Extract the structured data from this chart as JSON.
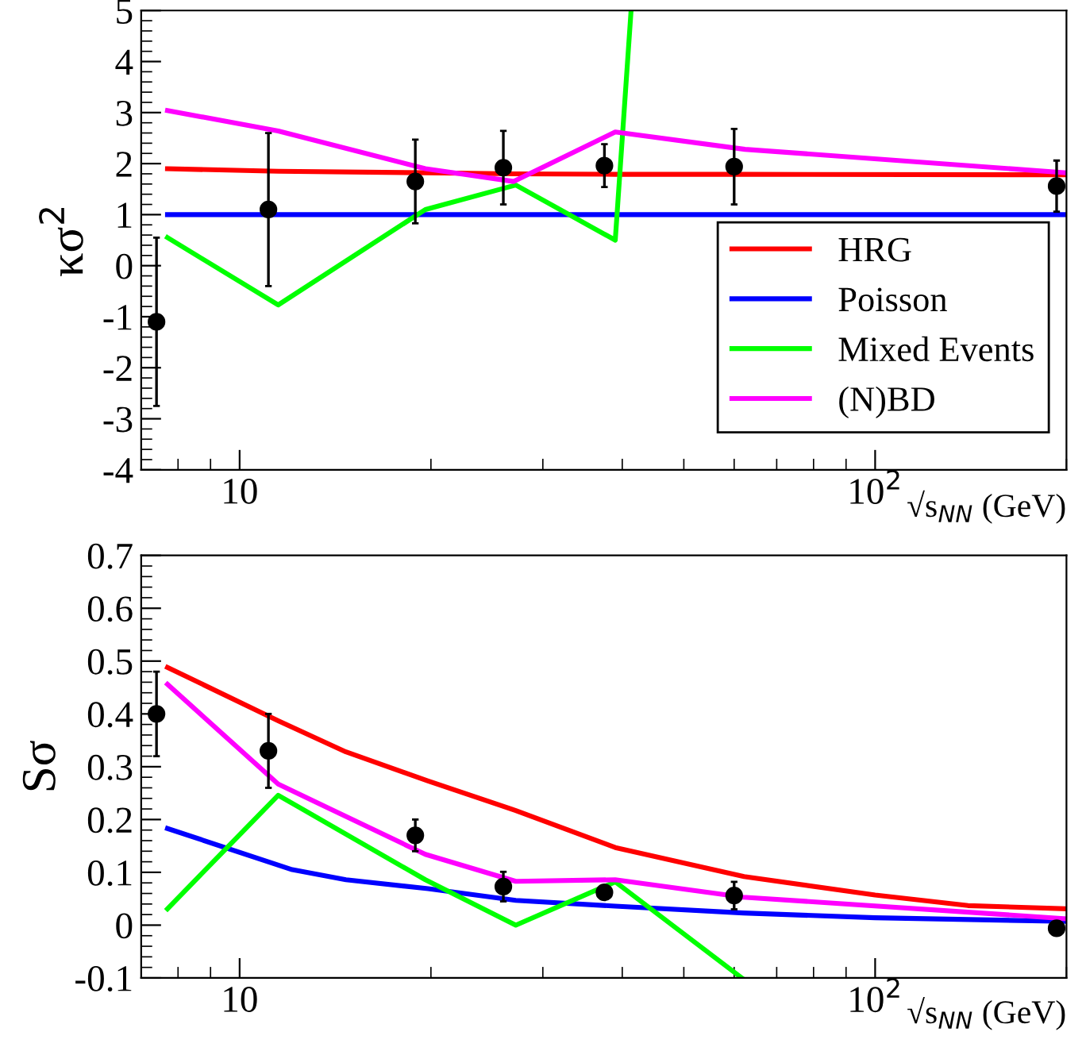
{
  "chart_data": [
    {
      "type": "line",
      "ylabel": "κσ$^{2}$",
      "xlabel": "√s$_{NN}$ (GeV)",
      "log": "x",
      "xlim": [
        7,
        200
      ],
      "xticks": [
        10,
        {
          "value": 100,
          "label": "10$^{2}$"
        }
      ],
      "ylim": [
        -4,
        5
      ],
      "yticks": [
        -4,
        -3,
        -2,
        -1,
        0,
        1,
        2,
        3,
        4,
        5
      ],
      "grid": false,
      "legend": "right",
      "series": [
        {
          "name": "HRG",
          "color": "#ff0000",
          "x": [
            7.7,
            11.5,
            19.6,
            27,
            39,
            62.4,
            200
          ],
          "values": [
            1.9,
            1.85,
            1.82,
            1.8,
            1.79,
            1.79,
            1.78
          ]
        },
        {
          "name": "Poisson",
          "color": "#0000ff",
          "x": [
            7.7,
            200
          ],
          "values": [
            1,
            1
          ]
        },
        {
          "name": "Mixed Events",
          "color": "#00ff00",
          "x": [
            7.7,
            11.5,
            19.6,
            27.2,
            39,
            41.3
          ],
          "values": [
            0.55,
            -0.77,
            1.1,
            1.58,
            0.5,
            5
          ]
        },
        {
          "name": "(N)BD",
          "color": "#ff00ff",
          "x": [
            7.7,
            11.5,
            19.6,
            27,
            39,
            62.4,
            200
          ],
          "values": [
            3.04,
            2.64,
            1.9,
            1.65,
            2.62,
            2.28,
            1.82
          ]
        },
        {
          "type": "scatter",
          "marker": "circle",
          "color": "#000000",
          "x": [
            7.4,
            11.1,
            18.9,
            26,
            37.5,
            60,
            193
          ],
          "values": [
            -1.1,
            1.1,
            1.65,
            1.92,
            1.96,
            1.94,
            1.56
          ],
          "errors": [
            1.65,
            1.5,
            0.82,
            0.72,
            0.42,
            0.74,
            0.5
          ]
        }
      ]
    },
    {
      "type": "line",
      "ylabel": "Sσ",
      "xlabel": "√s$_{NN}$ (GeV)",
      "log": "x",
      "xlim": [
        7,
        200
      ],
      "xticks": [
        10,
        {
          "value": 100,
          "label": "10$^{2}$"
        }
      ],
      "ylim": [
        -0.1,
        0.7
      ],
      "yticks": [
        -0.1,
        0,
        0.1,
        0.2,
        0.3,
        0.4,
        0.5,
        0.6,
        0.7
      ],
      "grid": false,
      "series": [
        {
          "color": "#ff0000",
          "x": [
            7.7,
            11.5,
            14.7,
            19.8,
            27.2,
            39,
            62.2,
            100,
            140,
            200
          ],
          "values": [
            0.488,
            0.387,
            0.328,
            0.273,
            0.217,
            0.147,
            0.092,
            0.057,
            0.037,
            0.031
          ]
        },
        {
          "color": "#0000ff",
          "x": [
            7.7,
            12.1,
            14.7,
            19.8,
            27.2,
            39,
            62,
            100,
            200
          ],
          "values": [
            0.183,
            0.105,
            0.086,
            0.069,
            0.047,
            0.036,
            0.023,
            0.014,
            0.007
          ]
        },
        {
          "color": "#00ff00",
          "x": [
            7.7,
            11.5,
            19.6,
            27.2,
            39,
            61.7
          ],
          "values": [
            0.031,
            0.246,
            0.086,
            0.0,
            0.082,
            -0.1
          ]
        },
        {
          "color": "#ff00ff",
          "x": [
            7.7,
            11.5,
            19.6,
            27.2,
            39,
            62,
            200
          ],
          "values": [
            0.456,
            0.267,
            0.134,
            0.083,
            0.086,
            0.053,
            0.012
          ]
        },
        {
          "type": "scatter",
          "marker": "circle",
          "color": "#000000",
          "x": [
            7.4,
            11.1,
            18.9,
            26,
            37.5,
            60,
            193
          ],
          "values": [
            0.4,
            0.33,
            0.17,
            0.073,
            0.062,
            0.056,
            -0.006
          ],
          "errors": [
            0.08,
            0.07,
            0.03,
            0.028,
            0.01,
            0.026,
            0.01
          ]
        }
      ]
    }
  ]
}
